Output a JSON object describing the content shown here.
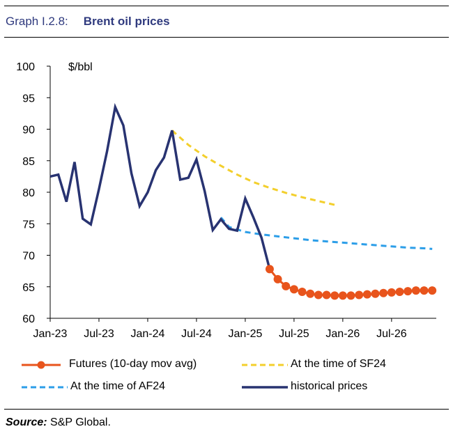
{
  "header": {
    "label": "Graph I.2.8:",
    "title": "Brent oil prices"
  },
  "source": {
    "label": "Source:",
    "text": "S&P Global."
  },
  "colors": {
    "historical": "#283371",
    "futures": "#e8541c",
    "sf24": "#f3cf2c",
    "af24": "#2c9ee8",
    "title": "#2f3a7e"
  },
  "chart_data": {
    "type": "line",
    "title": "Brent oil prices",
    "ylabel": "$/bbl",
    "xlabel": "",
    "ylim": [
      60,
      100
    ],
    "yticks": [
      60,
      65,
      70,
      75,
      80,
      85,
      90,
      95,
      100
    ],
    "xrange": [
      "Jan-23",
      "Dec-26"
    ],
    "xtick_labels": [
      "Jan-23",
      "Jul-23",
      "Jan-24",
      "Jul-24",
      "Jan-25",
      "Jul-25",
      "Jan-26",
      "Jul-26"
    ],
    "xtick_months": [
      0,
      6,
      12,
      18,
      24,
      30,
      36,
      42
    ],
    "grid": false,
    "legend_position": "bottom",
    "series": [
      {
        "name": "historical prices",
        "style": "solid",
        "months": [
          0,
          1,
          2,
          3,
          4,
          5,
          6,
          7,
          8,
          9,
          10,
          11,
          12,
          13,
          14,
          15,
          16,
          17,
          18,
          19,
          20,
          21,
          22,
          23,
          24,
          25,
          26,
          27
        ],
        "values": [
          82.5,
          82.8,
          78.5,
          84.8,
          75.8,
          74.9,
          80.5,
          86.5,
          93.5,
          90.6,
          83.0,
          77.8,
          80.0,
          83.5,
          85.5,
          89.8,
          82.0,
          82.3,
          85.2,
          80.2,
          74.0,
          75.7,
          74.2,
          73.9,
          79.0,
          76.0,
          72.8,
          67.8
        ]
      },
      {
        "name": "Futures (10-day mov avg)",
        "style": "line-markers",
        "months": [
          27,
          28,
          29,
          30,
          31,
          32,
          33,
          34,
          35,
          36,
          37,
          38,
          39,
          40,
          41,
          42,
          43,
          44,
          45,
          46,
          47
        ],
        "values": [
          67.8,
          66.2,
          65.1,
          64.6,
          64.2,
          63.9,
          63.7,
          63.7,
          63.6,
          63.6,
          63.6,
          63.7,
          63.8,
          63.9,
          64.0,
          64.1,
          64.2,
          64.3,
          64.4,
          64.4,
          64.4
        ]
      },
      {
        "name": "At the time of SF24",
        "style": "dashed",
        "months": [
          15,
          17,
          19,
          21,
          23,
          25,
          27,
          29,
          31,
          33,
          35
        ],
        "values": [
          89.8,
          87.5,
          85.7,
          84.2,
          82.8,
          81.6,
          80.7,
          79.9,
          79.2,
          78.6,
          78.0
        ]
      },
      {
        "name": "At the time of AF24",
        "style": "dashed",
        "months": [
          21,
          22,
          24,
          26,
          28,
          30,
          32,
          34,
          36,
          38,
          40,
          42,
          44,
          46,
          47
        ],
        "values": [
          76.0,
          74.5,
          73.7,
          73.3,
          73.0,
          72.7,
          72.4,
          72.2,
          72.0,
          71.8,
          71.6,
          71.4,
          71.2,
          71.1,
          71.0
        ]
      }
    ]
  }
}
